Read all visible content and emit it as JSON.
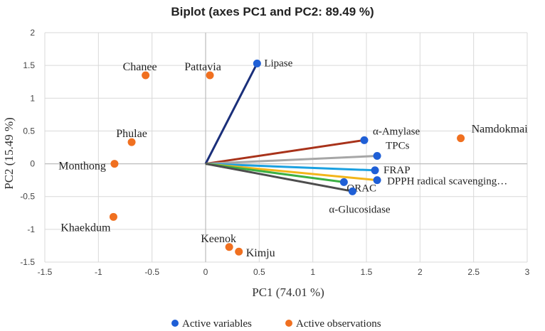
{
  "chart_data": {
    "type": "scatter",
    "title": "Biplot (axes PC1 and PC2: 89.49 %)",
    "xlabel": "PC1 (74.01 %)",
    "ylabel": "PC2 (15.49 %)",
    "xlim": [
      -1.5,
      3
    ],
    "ylim": [
      -1.5,
      2
    ],
    "xticks": [
      -1.5,
      -1,
      -0.5,
      0,
      0.5,
      1,
      1.5,
      2,
      2.5,
      3
    ],
    "yticks": [
      -1.5,
      -1,
      -0.5,
      0,
      0.5,
      1,
      1.5,
      2
    ],
    "xtick_labels": [
      "-1.5",
      "-1",
      "-0.5",
      "0",
      "0.5",
      "1",
      "1.5",
      "2",
      "2.5",
      "3"
    ],
    "ytick_labels": [
      "-1.5",
      "-1",
      "-0.5",
      "0",
      "0.5",
      "1",
      "1.5",
      "2"
    ],
    "colors": {
      "variables": "#1f5fd6",
      "observations": "#f07020",
      "gridlines": "#d9d9d9",
      "axes": "#bfbfbf"
    },
    "series": [
      {
        "name": "Active variables",
        "color": "#1f5fd6",
        "points": [
          {
            "label": "Lipase",
            "x": 0.48,
            "y": 1.53,
            "vector_color": "#1a2f7a"
          },
          {
            "label": "α-Amylase",
            "x": 1.48,
            "y": 0.36,
            "vector_color": "#a8321a"
          },
          {
            "label": "TPCs",
            "x": 1.6,
            "y": 0.12,
            "vector_color": "#a6a6a6"
          },
          {
            "label": "FRAP",
            "x": 1.58,
            "y": -0.1,
            "vector_color": "#1aa0e0"
          },
          {
            "label": "DPPH radical scavenging…",
            "x": 1.6,
            "y": -0.25,
            "vector_color": "#f2b51a"
          },
          {
            "label": "ORAC",
            "x": 1.29,
            "y": -0.28,
            "vector_color": "#3cb043"
          },
          {
            "label": "α-Glucosidase",
            "x": 1.37,
            "y": -0.42,
            "vector_color": "#4d4d4d"
          }
        ]
      },
      {
        "name": "Active observations",
        "color": "#f07020",
        "points": [
          {
            "label": "Chanee",
            "x": -0.56,
            "y": 1.35
          },
          {
            "label": "Pattavia",
            "x": 0.04,
            "y": 1.35
          },
          {
            "label": "Phulae",
            "x": -0.69,
            "y": 0.33
          },
          {
            "label": "Monthong",
            "x": -0.85,
            "y": 0.0
          },
          {
            "label": "Khaekdum",
            "x": -0.86,
            "y": -0.81
          },
          {
            "label": "Keenok",
            "x": 0.22,
            "y": -1.27
          },
          {
            "label": "Kimju",
            "x": 0.31,
            "y": -1.34
          },
          {
            "label": "Namdokmai",
            "x": 2.38,
            "y": 0.39
          }
        ]
      }
    ],
    "legend": [
      "Active variables",
      "Active observations"
    ],
    "legend_position": "bottom"
  }
}
